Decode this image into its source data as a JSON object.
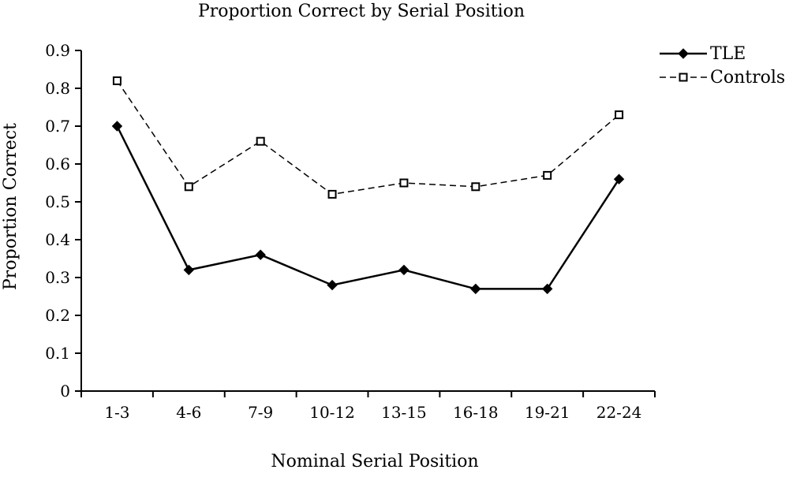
{
  "chart_data": {
    "type": "line",
    "title": "Proportion Correct by Serial Position",
    "xlabel": "Nominal Serial Position",
    "ylabel": "Proportion Correct",
    "categories": [
      "1-3",
      "4-6",
      "7-9",
      "10-12",
      "13-15",
      "16-18",
      "19-21",
      "22-24"
    ],
    "ylim": [
      0,
      0.9
    ],
    "yticks": [
      "0",
      "0.1",
      "0.2",
      "0.3",
      "0.4",
      "0.5",
      "0.6",
      "0.7",
      "0.8",
      "0.9"
    ],
    "grid": false,
    "legend_position": "top-right",
    "series": [
      {
        "name": "TLE",
        "values": [
          0.7,
          0.32,
          0.36,
          0.28,
          0.32,
          0.27,
          0.27,
          0.56
        ],
        "line_style": "solid",
        "marker": "filled-diamond",
        "color": "#000000"
      },
      {
        "name": "Controls",
        "values": [
          0.82,
          0.54,
          0.66,
          0.52,
          0.55,
          0.54,
          0.57,
          0.73
        ],
        "line_style": "dashed",
        "marker": "open-square",
        "color": "#000000"
      }
    ]
  }
}
